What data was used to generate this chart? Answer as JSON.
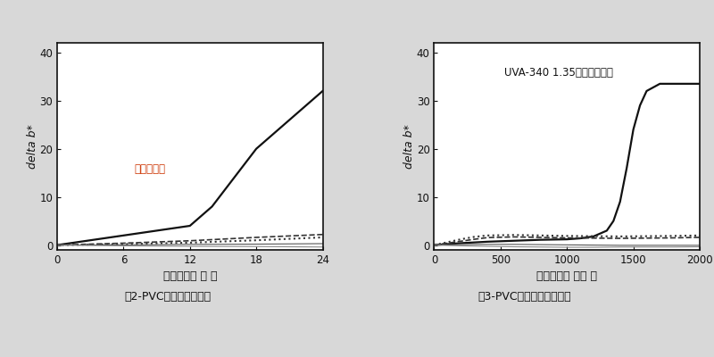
{
  "fig1": {
    "title": "图2-PVC薄膜、户外老化",
    "xlabel": "曝晒时间（ 月 ）",
    "ylabel": "delta b*",
    "annotation": "亚利桑那州",
    "annotation_color": "#cc3300",
    "xlim": [
      0,
      24
    ],
    "ylim": [
      -1,
      42
    ],
    "xticks": [
      0,
      6,
      12,
      18,
      24
    ],
    "yticks": [
      0,
      10,
      20,
      30,
      40
    ],
    "lines": [
      {
        "x": [
          0,
          12,
          14,
          18,
          24
        ],
        "y": [
          0,
          4,
          8,
          20,
          32
        ],
        "style": "-",
        "color": "#111111",
        "lw": 1.6
      },
      {
        "x": [
          0,
          6,
          12,
          18,
          24
        ],
        "y": [
          0,
          0.4,
          0.9,
          1.6,
          2.2
        ],
        "style": "--",
        "color": "#333333",
        "lw": 1.2
      },
      {
        "x": [
          0,
          6,
          12,
          18,
          24
        ],
        "y": [
          0,
          0.2,
          0.5,
          1.0,
          1.6
        ],
        "style": ":",
        "color": "#333333",
        "lw": 1.5
      },
      {
        "x": [
          0,
          6,
          12,
          18,
          24
        ],
        "y": [
          0,
          0.05,
          0.15,
          0.2,
          0.3
        ],
        "style": "-",
        "color": "#555555",
        "lw": 0.8
      },
      {
        "x": [
          0,
          6,
          12,
          18,
          24
        ],
        "y": [
          0,
          -0.15,
          -0.25,
          -0.3,
          -0.4
        ],
        "style": "-",
        "color": "#888888",
        "lw": 0.8
      }
    ],
    "ann_x": 7,
    "ann_y": 17
  },
  "fig2": {
    "title": "图3-PVC薄膜、实验室老化",
    "xlabel": "曝晒时间（ 小时 ）",
    "ylabel": "delta b*",
    "annotation": "UVA-340 1.35，只紫外光照",
    "annotation_color": "#111111",
    "xlim": [
      0,
      2000
    ],
    "ylim": [
      -1,
      42
    ],
    "xticks": [
      0,
      500,
      1000,
      1500,
      2000
    ],
    "yticks": [
      0,
      10,
      20,
      30,
      40
    ],
    "lines": [
      {
        "x": [
          0,
          200,
          400,
          600,
          800,
          1000,
          1100,
          1200,
          1300,
          1350,
          1400,
          1450,
          1500,
          1550,
          1600,
          1700,
          1800,
          2000
        ],
        "y": [
          0,
          0.4,
          0.7,
          0.9,
          1.1,
          1.2,
          1.4,
          1.8,
          3.0,
          5.0,
          9.0,
          16.0,
          24.0,
          29.0,
          32.0,
          33.5,
          33.5,
          33.5
        ],
        "style": "-",
        "color": "#111111",
        "lw": 1.6
      },
      {
        "x": [
          0,
          100,
          200,
          300,
          400,
          600,
          800,
          1000,
          1200,
          1400,
          1600,
          1800,
          2000
        ],
        "y": [
          0,
          0.6,
          1.2,
          1.7,
          2.0,
          2.1,
          2.0,
          1.9,
          1.85,
          1.8,
          1.85,
          1.9,
          2.0
        ],
        "style": ":",
        "color": "#333333",
        "lw": 1.5
      },
      {
        "x": [
          0,
          100,
          200,
          300,
          400,
          600,
          800,
          1000,
          1200,
          1400,
          1600,
          1800,
          2000
        ],
        "y": [
          0,
          0.4,
          0.8,
          1.2,
          1.55,
          1.7,
          1.6,
          1.5,
          1.45,
          1.4,
          1.45,
          1.5,
          1.6
        ],
        "style": "--",
        "color": "#333333",
        "lw": 1.2
      },
      {
        "x": [
          0,
          200,
          400,
          600,
          800,
          1000,
          1200,
          1400,
          1600,
          1800,
          2000
        ],
        "y": [
          0,
          0.1,
          0.15,
          0.15,
          0.1,
          0.05,
          0.0,
          -0.05,
          -0.05,
          -0.05,
          -0.05
        ],
        "style": "-",
        "color": "#555555",
        "lw": 0.8
      },
      {
        "x": [
          0,
          200,
          400,
          600,
          800,
          1000,
          1200,
          1400,
          1600,
          1800,
          2000
        ],
        "y": [
          0,
          -0.15,
          -0.25,
          -0.35,
          -0.4,
          -0.45,
          -0.45,
          -0.4,
          -0.4,
          -0.4,
          -0.35
        ],
        "style": "-",
        "color": "#888888",
        "lw": 0.8
      }
    ],
    "ann_x": 530,
    "ann_y": 37
  },
  "bg_color": "#d8d8d8",
  "plot_bg": "#ffffff",
  "border_color": "#111111",
  "tick_color": "#111111",
  "label_fontsize": 9,
  "title_fontsize": 9,
  "ann_fontsize": 8.5
}
